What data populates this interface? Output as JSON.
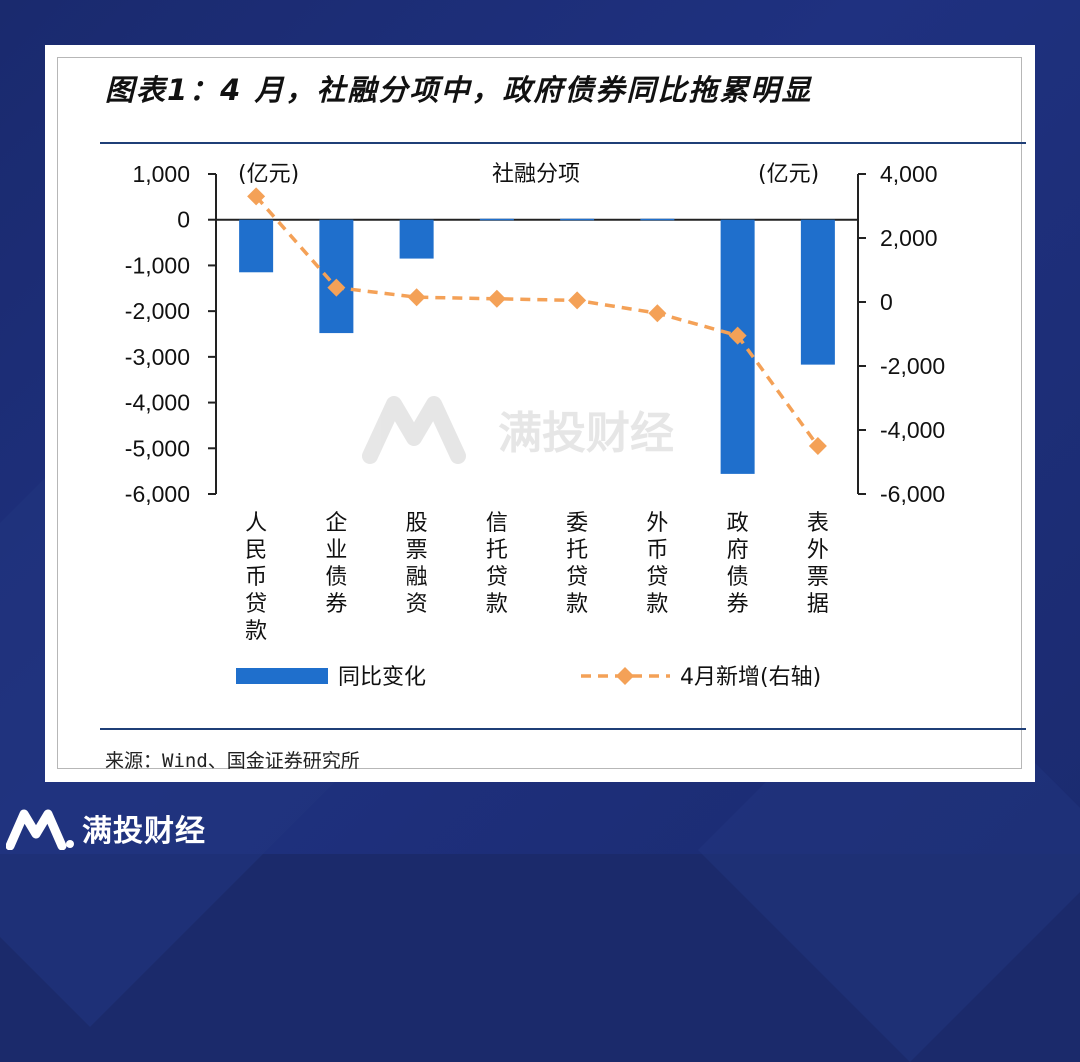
{
  "header": {
    "title": "图表1：4 月，社融分项中，政府债券同比拖累明显"
  },
  "footer": {
    "source": "来源：Wind、国金证券研究所"
  },
  "brand": {
    "name": "满投财经",
    "watermark": "满投财经"
  },
  "colors": {
    "bar": "#1f6fcc",
    "line": "#f4a157",
    "rule": "#1f3f77",
    "background": "#1b2a6b"
  },
  "chart_data": {
    "type": "bar",
    "title": "社融分项",
    "y_unit_left": "(亿元)",
    "y_unit_right": "(亿元)",
    "categories": [
      [
        "人",
        "民",
        "币",
        "贷",
        "款"
      ],
      [
        "企",
        "业",
        "债",
        "券"
      ],
      [
        "股",
        "票",
        "融",
        "资"
      ],
      [
        "信",
        "托",
        "贷",
        "款"
      ],
      [
        "委",
        "托",
        "贷",
        "款"
      ],
      [
        "外",
        "币",
        "贷",
        "款"
      ],
      [
        "政",
        "府",
        "债",
        "券"
      ],
      [
        "表",
        "外",
        "票",
        "据"
      ]
    ],
    "category_names": [
      "人民币贷款",
      "企业债券",
      "股票融资",
      "信托贷款",
      "委托贷款",
      "外币贷款",
      "政府债券",
      "表外票据"
    ],
    "left_axis": {
      "ylim": [
        -6000,
        1000
      ],
      "ticks": [
        1000,
        0,
        -1000,
        -2000,
        -3000,
        -4000,
        -5000,
        -6000
      ],
      "tick_labels": [
        "1,000",
        "0",
        "-1,000",
        "-2,000",
        "-3,000",
        "-4,000",
        "-5,000",
        "-6,000"
      ]
    },
    "right_axis": {
      "ylim": [
        -6000,
        4000
      ],
      "ticks": [
        4000,
        2000,
        0,
        -2000,
        -4000,
        -6000
      ],
      "tick_labels": [
        "4,000",
        "2,000",
        "0",
        "-2,000",
        "-4,000",
        "-6,000"
      ]
    },
    "series": [
      {
        "name": "同比变化",
        "type": "bar",
        "axis": "left",
        "values": [
          -1150,
          -2480,
          -850,
          20,
          20,
          20,
          -5560,
          -3170
        ]
      },
      {
        "name": "4月新增(右轴)",
        "type": "line",
        "axis": "right",
        "values": [
          3300,
          450,
          150,
          100,
          50,
          -350,
          -1050,
          -4500
        ]
      }
    ],
    "grid": false,
    "legend_position": "bottom"
  }
}
